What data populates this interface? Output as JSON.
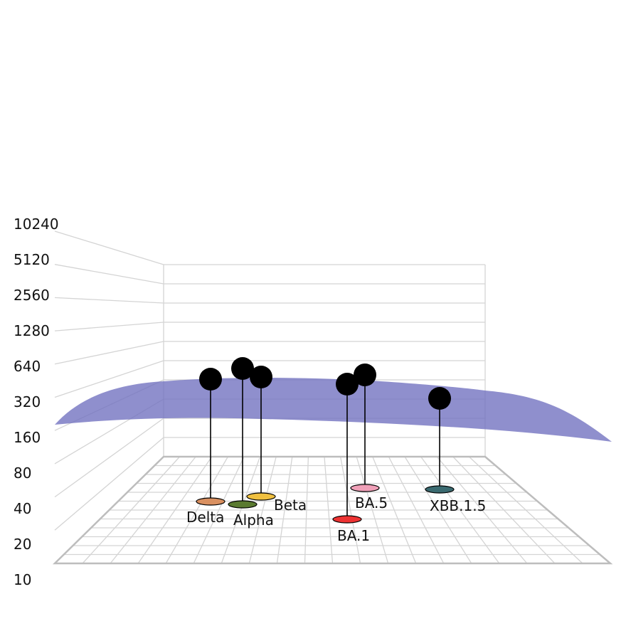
{
  "chart_data": {
    "type": "scatter-3d",
    "y_axis": {
      "scale": "log2",
      "ticks": [
        "10",
        "20",
        "40",
        "80",
        "160",
        "320",
        "640",
        "1280",
        "2560",
        "5120",
        "10240"
      ]
    },
    "surface_color": "#7070bf",
    "marker_color": "#000000",
    "points": [
      {
        "label": "Delta",
        "titer": 420,
        "base_color": "#d99060"
      },
      {
        "label": "Alpha",
        "titer": 490,
        "base_color": "#5a7a30"
      },
      {
        "label": "Beta",
        "titer": 440,
        "base_color": "#f0c040"
      },
      {
        "label": "BA.1",
        "titer": 390,
        "base_color": "#ee3333"
      },
      {
        "label": "BA.5",
        "titer": 470,
        "base_color": "#f0a0b8"
      },
      {
        "label": "XBB.1.5",
        "titer": 350,
        "base_color": "#3a6a70"
      }
    ]
  }
}
